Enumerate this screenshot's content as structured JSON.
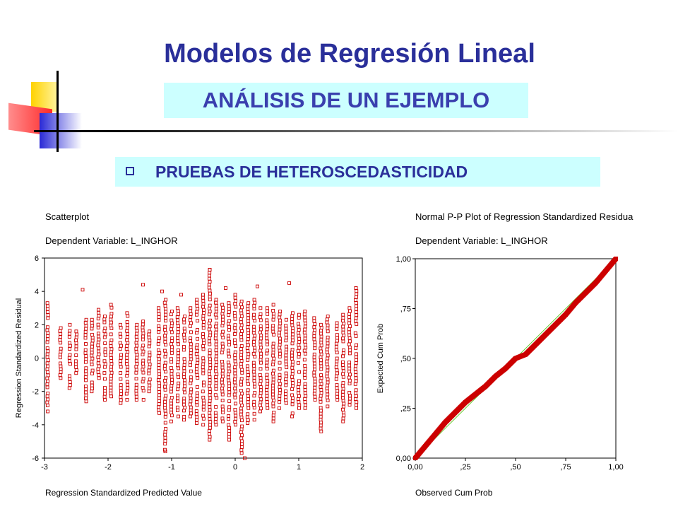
{
  "slide": {
    "title": "Modelos de Regresión Lineal",
    "subtitle": "ANÁLISIS DE UN EJEMPLO",
    "section": "PRUEBAS DE HETEROSCEDASTICIDAD",
    "colors": {
      "title": "#2a2f9a",
      "highlight": "#ccffff",
      "marker": "#cc0000",
      "reference_line": "#66cc33"
    }
  },
  "chart_data": [
    {
      "type": "scatter",
      "title": "Scatterplot",
      "subtitle": "Dependent Variable: L_INGHOR",
      "xlabel": "Regression Standardized Predicted Value",
      "ylabel": "Regression Standardized Residual",
      "xlim": [
        -3,
        2
      ],
      "ylim": [
        -6,
        6
      ],
      "xticks": [
        "-3",
        "-2",
        "-1",
        "0",
        "1",
        "2"
      ],
      "yticks": [
        "6",
        "4",
        "2",
        "0",
        "-2",
        "-4",
        "-6"
      ],
      "marker": "open-square",
      "columns": [
        {
          "x": -2.95,
          "ymin": -3.2,
          "ymax": 3.3
        },
        {
          "x": -2.75,
          "ymin": -1.2,
          "ymax": 1.8
        },
        {
          "x": -2.6,
          "ymin": -1.8,
          "ymax": 2.0
        },
        {
          "x": -2.5,
          "ymin": -0.9,
          "ymax": 1.6
        },
        {
          "x": -2.35,
          "ymin": -2.6,
          "ymax": 2.3
        },
        {
          "x": -2.25,
          "ymin": -2.0,
          "ymax": 2.3
        },
        {
          "x": -2.15,
          "ymin": -1.2,
          "ymax": 2.9
        },
        {
          "x": -2.05,
          "ymin": -2.5,
          "ymax": 2.5
        },
        {
          "x": -1.95,
          "ymin": -2.3,
          "ymax": 3.2
        },
        {
          "x": -1.8,
          "ymin": -2.7,
          "ymax": 2.0
        },
        {
          "x": -1.7,
          "ymin": -2.5,
          "ymax": 2.7
        },
        {
          "x": -1.55,
          "ymin": -2.5,
          "ymax": 2.0
        },
        {
          "x": -1.45,
          "ymin": -2.5,
          "ymax": 2.2
        },
        {
          "x": -1.35,
          "ymin": -2.0,
          "ymax": 1.6
        },
        {
          "x": -1.2,
          "ymin": -3.3,
          "ymax": 3.0
        },
        {
          "x": -1.1,
          "ymin": -5.5,
          "ymax": 3.5
        },
        {
          "x": -1.0,
          "ymin": -3.8,
          "ymax": 2.8
        },
        {
          "x": -0.9,
          "ymin": -3.5,
          "ymax": 3.0
        },
        {
          "x": -0.8,
          "ymin": -3.7,
          "ymax": 2.5
        },
        {
          "x": -0.7,
          "ymin": -3.5,
          "ymax": 3.0
        },
        {
          "x": -0.6,
          "ymin": -3.9,
          "ymax": 3.5
        },
        {
          "x": -0.5,
          "ymin": -4.0,
          "ymax": 3.8
        },
        {
          "x": -0.4,
          "ymin": -4.9,
          "ymax": 5.3
        },
        {
          "x": -0.3,
          "ymin": -4.0,
          "ymax": 3.5
        },
        {
          "x": -0.2,
          "ymin": -3.8,
          "ymax": 3.2
        },
        {
          "x": -0.1,
          "ymin": -4.9,
          "ymax": 3.3
        },
        {
          "x": 0.0,
          "ymin": -4.0,
          "ymax": 3.8
        },
        {
          "x": 0.1,
          "ymin": -5.7,
          "ymax": 3.4
        },
        {
          "x": 0.2,
          "ymin": -3.9,
          "ymax": 3.3
        },
        {
          "x": 0.3,
          "ymin": -3.7,
          "ymax": 3.5
        },
        {
          "x": 0.4,
          "ymin": -3.2,
          "ymax": 3.0
        },
        {
          "x": 0.5,
          "ymin": -3.0,
          "ymax": 3.0
        },
        {
          "x": 0.6,
          "ymin": -3.8,
          "ymax": 3.2
        },
        {
          "x": 0.7,
          "ymin": -3.0,
          "ymax": 2.8
        },
        {
          "x": 0.8,
          "ymin": -2.7,
          "ymax": 2.3
        },
        {
          "x": 0.9,
          "ymin": -3.5,
          "ymax": 2.7
        },
        {
          "x": 1.0,
          "ymin": -3.0,
          "ymax": 2.6
        },
        {
          "x": 1.1,
          "ymin": -3.0,
          "ymax": 2.8
        },
        {
          "x": 1.25,
          "ymin": -2.5,
          "ymax": 2.4
        },
        {
          "x": 1.35,
          "ymin": -4.4,
          "ymax": 2.0
        },
        {
          "x": 1.45,
          "ymin": -2.9,
          "ymax": 2.5
        },
        {
          "x": 1.6,
          "ymin": -2.5,
          "ymax": 2.1
        },
        {
          "x": 1.7,
          "ymin": -3.8,
          "ymax": 2.6
        },
        {
          "x": 1.8,
          "ymin": -2.8,
          "ymax": 3.0
        },
        {
          "x": 1.9,
          "ymin": -3.0,
          "ymax": 4.2
        }
      ],
      "outliers": [
        {
          "x": -2.4,
          "y": 4.1
        },
        {
          "x": -1.45,
          "y": 4.4
        },
        {
          "x": -1.15,
          "y": 4.0
        },
        {
          "x": -0.85,
          "y": 3.8
        },
        {
          "x": -0.4,
          "y": 5.3
        },
        {
          "x": -0.15,
          "y": 4.2
        },
        {
          "x": 0.35,
          "y": 4.3
        },
        {
          "x": 0.85,
          "y": 4.5
        },
        {
          "x": 1.9,
          "y": 4.2
        },
        {
          "x": 0.15,
          "y": -6.0
        },
        {
          "x": -1.1,
          "y": -5.6
        }
      ]
    },
    {
      "type": "line",
      "title": "Normal P-P Plot of Regression Standardized Residua",
      "subtitle": "Dependent Variable: L_INGHOR",
      "xlabel": "Observed Cum Prob",
      "ylabel": "Expected Cum Prob",
      "xlim": [
        0,
        1
      ],
      "ylim": [
        0,
        1
      ],
      "xticks": [
        "0,00",
        ",25",
        ",50",
        ",75",
        "1,00"
      ],
      "yticks": [
        "1,00",
        ",75",
        ",50",
        ",25",
        "0,00"
      ],
      "reference_line": {
        "x": [
          0,
          1
        ],
        "y": [
          0,
          1
        ]
      },
      "series": [
        {
          "marker": "open-square",
          "x": [
            0.0,
            0.05,
            0.1,
            0.15,
            0.2,
            0.25,
            0.3,
            0.35,
            0.4,
            0.45,
            0.5,
            0.55,
            0.6,
            0.65,
            0.7,
            0.75,
            0.8,
            0.85,
            0.9,
            0.95,
            1.0
          ],
          "y": [
            0.0,
            0.06,
            0.12,
            0.18,
            0.23,
            0.28,
            0.32,
            0.36,
            0.41,
            0.45,
            0.5,
            0.52,
            0.57,
            0.62,
            0.67,
            0.72,
            0.78,
            0.83,
            0.88,
            0.94,
            1.0
          ]
        }
      ]
    }
  ]
}
